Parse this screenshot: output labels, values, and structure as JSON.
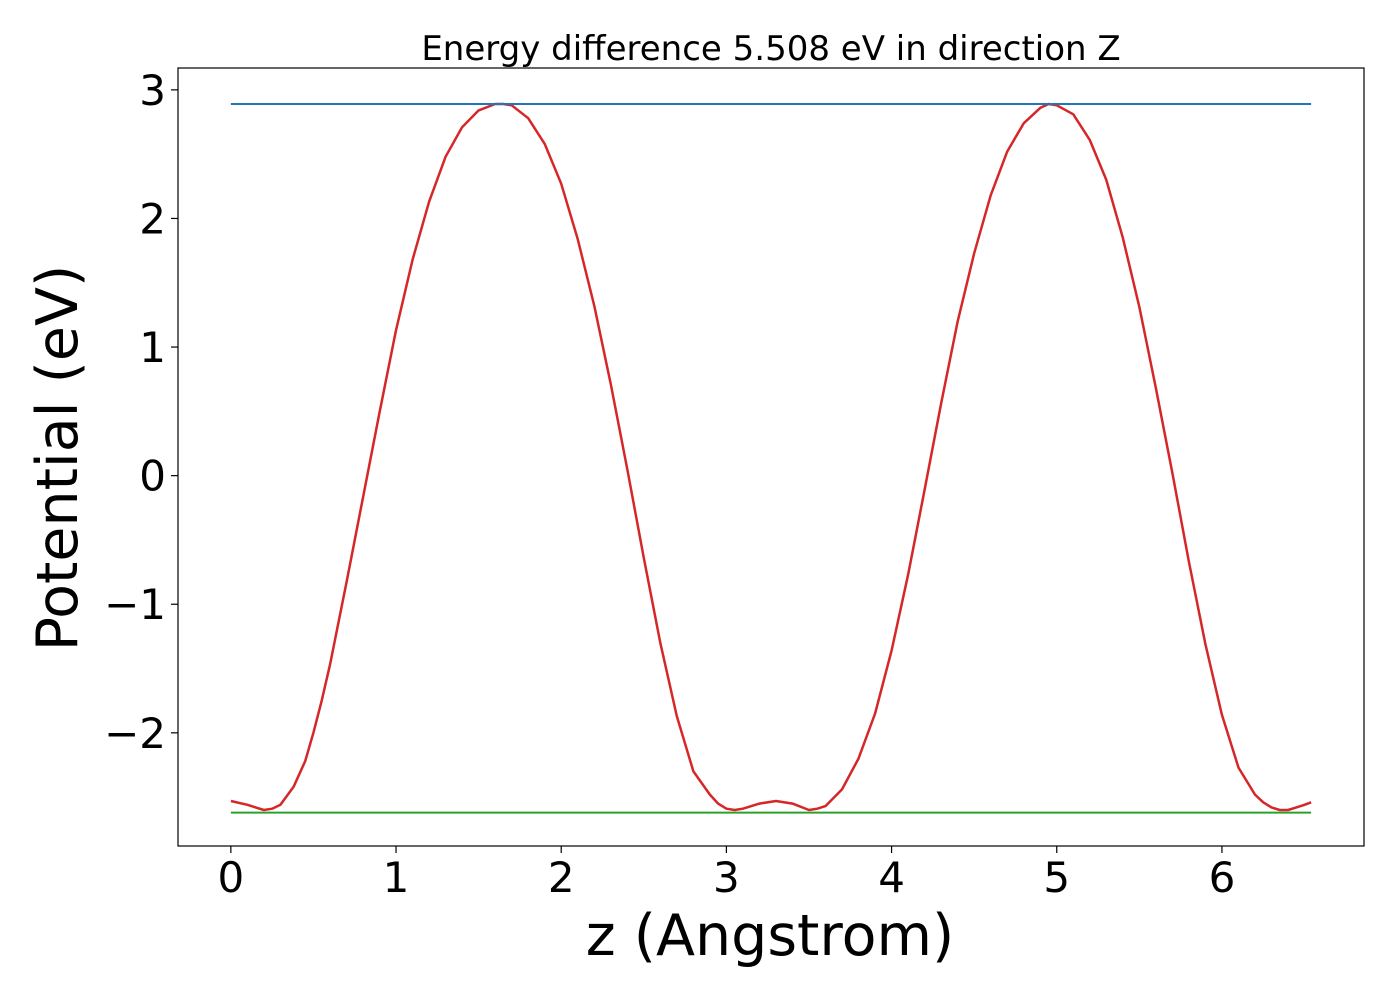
{
  "chart_data": {
    "type": "line",
    "title": "Energy difference 5.508 eV in direction Z",
    "xlabel": "z (Angstrom)",
    "ylabel": "Potential (eV)",
    "xlim": [
      -0.32,
      6.86
    ],
    "ylim": [
      -2.88,
      3.17
    ],
    "xticks": [
      0,
      1,
      2,
      3,
      4,
      5,
      6
    ],
    "xtick_labels": [
      "0",
      "1",
      "2",
      "3",
      "4",
      "5",
      "6"
    ],
    "yticks": [
      -2,
      -1,
      0,
      1,
      2,
      3
    ],
    "ytick_labels": [
      "−2",
      "−1",
      "0",
      "1",
      "2",
      "3"
    ],
    "grid": false,
    "series": [
      {
        "color": "#d62728",
        "x": [
          0,
          0.1,
          0.2,
          0.25,
          0.3,
          0.38,
          0.45,
          0.5,
          0.55,
          0.6,
          0.7,
          0.8,
          0.9,
          1.0,
          1.1,
          1.2,
          1.3,
          1.4,
          1.5,
          1.6,
          1.65,
          1.7,
          1.8,
          1.9,
          2.0,
          2.1,
          2.2,
          2.3,
          2.4,
          2.5,
          2.6,
          2.7,
          2.8,
          2.9,
          2.95,
          3.0,
          3.05,
          3.1,
          3.2,
          3.3,
          3.4,
          3.5,
          3.55,
          3.6,
          3.7,
          3.8,
          3.9,
          4.0,
          4.1,
          4.2,
          4.3,
          4.4,
          4.5,
          4.6,
          4.7,
          4.8,
          4.9,
          4.95,
          5.0,
          5.1,
          5.2,
          5.3,
          5.4,
          5.5,
          5.6,
          5.7,
          5.8,
          5.9,
          6.0,
          6.1,
          6.2,
          6.25,
          6.3,
          6.35,
          6.4,
          6.45,
          6.5,
          6.54
        ],
        "y": [
          -2.53,
          -2.56,
          -2.6,
          -2.59,
          -2.56,
          -2.42,
          -2.22,
          -2.0,
          -1.75,
          -1.47,
          -0.83,
          -0.17,
          0.49,
          1.13,
          1.68,
          2.13,
          2.48,
          2.71,
          2.84,
          2.89,
          2.89,
          2.88,
          2.78,
          2.58,
          2.27,
          1.84,
          1.32,
          0.71,
          0.05,
          -0.64,
          -1.3,
          -1.87,
          -2.3,
          -2.48,
          -2.55,
          -2.59,
          -2.6,
          -2.59,
          -2.55,
          -2.53,
          -2.55,
          -2.6,
          -2.59,
          -2.57,
          -2.44,
          -2.2,
          -1.85,
          -1.36,
          -0.77,
          -0.11,
          0.56,
          1.2,
          1.73,
          2.18,
          2.52,
          2.74,
          2.86,
          2.89,
          2.88,
          2.81,
          2.61,
          2.3,
          1.85,
          1.31,
          0.68,
          0.02,
          -0.67,
          -1.31,
          -1.86,
          -2.27,
          -2.48,
          -2.54,
          -2.58,
          -2.6,
          -2.6,
          -2.58,
          -2.56,
          -2.54
        ]
      },
      {
        "color": "#1f77b4",
        "x": [
          0,
          6.54
        ],
        "y": [
          2.89,
          2.89
        ]
      },
      {
        "color": "#2ca02c",
        "x": [
          0,
          6.54
        ],
        "y": [
          -2.62,
          -2.62
        ]
      }
    ]
  }
}
